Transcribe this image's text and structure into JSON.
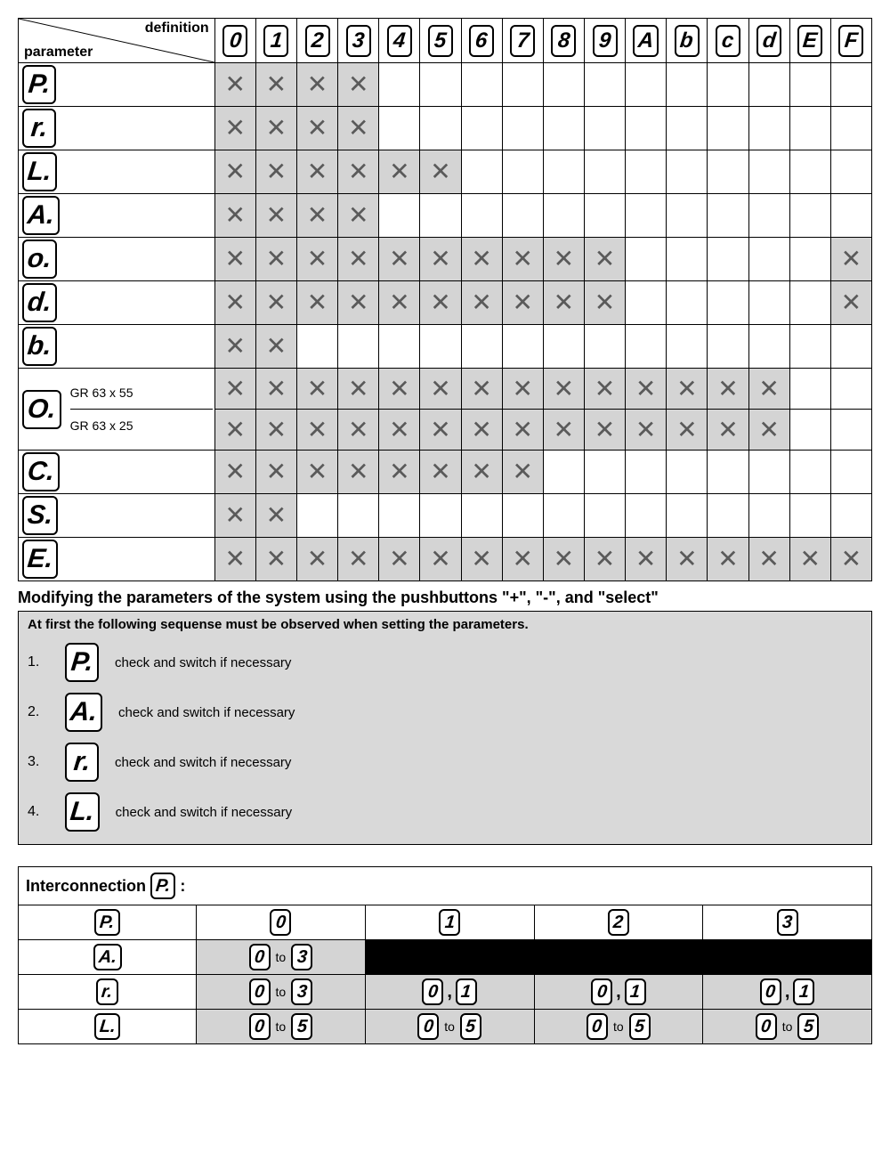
{
  "colors": {
    "shade": "#d4d4d4",
    "black": "#000000",
    "xmark": "#5a5a5a",
    "bg": "#ffffff"
  },
  "matrix": {
    "corner_top": "definition",
    "corner_bottom": "parameter",
    "columns": [
      "0",
      "1",
      "2",
      "3",
      "4",
      "5",
      "6",
      "7",
      "8",
      "9",
      "A",
      "b",
      "c",
      "d",
      "E",
      "F"
    ],
    "rows": [
      {
        "param": "P.",
        "marks": [
          1,
          1,
          1,
          1,
          0,
          0,
          0,
          0,
          0,
          0,
          0,
          0,
          0,
          0,
          0,
          0
        ]
      },
      {
        "param": "r.",
        "marks": [
          1,
          1,
          1,
          1,
          0,
          0,
          0,
          0,
          0,
          0,
          0,
          0,
          0,
          0,
          0,
          0
        ]
      },
      {
        "param": "L.",
        "marks": [
          1,
          1,
          1,
          1,
          1,
          1,
          0,
          0,
          0,
          0,
          0,
          0,
          0,
          0,
          0,
          0
        ]
      },
      {
        "param": "A.",
        "marks": [
          1,
          1,
          1,
          1,
          0,
          0,
          0,
          0,
          0,
          0,
          0,
          0,
          0,
          0,
          0,
          0
        ]
      },
      {
        "param": "o.",
        "marks": [
          1,
          1,
          1,
          1,
          1,
          1,
          1,
          1,
          1,
          1,
          0,
          0,
          0,
          0,
          0,
          1
        ]
      },
      {
        "param": "d.",
        "marks": [
          1,
          1,
          1,
          1,
          1,
          1,
          1,
          1,
          1,
          1,
          0,
          0,
          0,
          0,
          0,
          1
        ]
      },
      {
        "param": "b.",
        "marks": [
          1,
          1,
          0,
          0,
          0,
          0,
          0,
          0,
          0,
          0,
          0,
          0,
          0,
          0,
          0,
          0
        ]
      },
      {
        "param": "O.",
        "sublabels": [
          "GR 63 x 55",
          "GR 63 x 25"
        ],
        "sub": [
          [
            1,
            1,
            1,
            1,
            1,
            1,
            1,
            1,
            1,
            1,
            1,
            1,
            1,
            1,
            0,
            0
          ],
          [
            1,
            1,
            1,
            1,
            1,
            1,
            1,
            1,
            1,
            1,
            1,
            1,
            1,
            1,
            0,
            0
          ]
        ]
      },
      {
        "param": "C.",
        "marks": [
          1,
          1,
          1,
          1,
          1,
          1,
          1,
          1,
          0,
          0,
          0,
          0,
          0,
          0,
          0,
          0
        ]
      },
      {
        "param": "S.",
        "marks": [
          1,
          1,
          0,
          0,
          0,
          0,
          0,
          0,
          0,
          0,
          0,
          0,
          0,
          0,
          0,
          0
        ]
      },
      {
        "param": "E.",
        "marks": [
          1,
          1,
          1,
          1,
          1,
          1,
          1,
          1,
          1,
          1,
          1,
          1,
          1,
          1,
          1,
          1
        ]
      }
    ]
  },
  "modify_title": "Modifying the parameters of the system  using the pushbuttons \"+\", \"-\", and \"select\"",
  "sequence": {
    "heading": "At first the following sequense must be observed when setting the parameters.",
    "steps": [
      {
        "n": "1.",
        "glyph": "P.",
        "text": "check and switch if necessary"
      },
      {
        "n": "2.",
        "glyph": "A.",
        "text": "check and switch if necessary"
      },
      {
        "n": "3.",
        "glyph": "r.",
        "text": "check and switch if necessary"
      },
      {
        "n": "4.",
        "glyph": "L.",
        "text": "check and switch if necessary"
      }
    ]
  },
  "inter": {
    "title_prefix": "Interconnection",
    "title_glyph": "P.",
    "title_suffix": ":",
    "head_row_glyph": "P.",
    "head_cols": [
      "0",
      "1",
      "2",
      "3"
    ],
    "rows": [
      {
        "glyph": "A.",
        "cells": [
          {
            "type": "range",
            "from": "0",
            "to": "3",
            "shade": true
          },
          {
            "type": "blackspan"
          }
        ]
      },
      {
        "glyph": "r.",
        "cells": [
          {
            "type": "range",
            "from": "0",
            "to": "3",
            "shade": true
          },
          {
            "type": "pair",
            "a": "0",
            "b": "1",
            "shade": true
          },
          {
            "type": "pair",
            "a": "0",
            "b": "1",
            "shade": true
          },
          {
            "type": "pair",
            "a": "0",
            "b": "1",
            "shade": true
          }
        ]
      },
      {
        "glyph": "L.",
        "cells": [
          {
            "type": "range",
            "from": "0",
            "to": "5",
            "shade": true
          },
          {
            "type": "range",
            "from": "0",
            "to": "5",
            "shade": true
          },
          {
            "type": "range",
            "from": "0",
            "to": "5",
            "shade": true
          },
          {
            "type": "range",
            "from": "0",
            "to": "5",
            "shade": true
          }
        ]
      }
    ],
    "to_word": "to"
  }
}
